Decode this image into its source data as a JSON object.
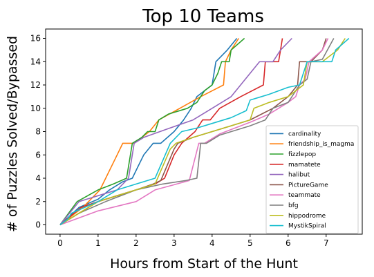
{
  "chart_data": {
    "type": "line",
    "title": "Top 10 Teams",
    "xlabel": "Hours from Start of the Hunt",
    "ylabel": "# of Puzzles Solved/Bypassed",
    "xlim": [
      -0.38,
      7.95
    ],
    "ylim": [
      -0.8,
      16.8
    ],
    "xticks": [
      0,
      1,
      2,
      3,
      4,
      5,
      6,
      7
    ],
    "yticks": [
      0,
      2,
      4,
      6,
      8,
      10,
      12,
      14,
      16
    ],
    "grid": false,
    "legend_position": "lower-right",
    "series": [
      {
        "name": "cardinality",
        "color": "#1f77b4",
        "points": [
          [
            0,
            0
          ],
          [
            0.5,
            1.5
          ],
          [
            1.0,
            2.2
          ],
          [
            1.3,
            3
          ],
          [
            1.65,
            3.7
          ],
          [
            1.9,
            4
          ],
          [
            2.05,
            5
          ],
          [
            2.2,
            6
          ],
          [
            2.45,
            7
          ],
          [
            2.65,
            7
          ],
          [
            3.0,
            8
          ],
          [
            3.25,
            9
          ],
          [
            3.45,
            10
          ],
          [
            3.6,
            11
          ],
          [
            3.8,
            11.5
          ],
          [
            4.0,
            12
          ],
          [
            4.1,
            14
          ],
          [
            4.4,
            15
          ],
          [
            4.65,
            16
          ]
        ]
      },
      {
        "name": "friendship_is_magma",
        "color": "#ff7f0e",
        "points": [
          [
            0,
            0
          ],
          [
            0.6,
            1.5
          ],
          [
            1.05,
            3
          ],
          [
            1.2,
            4
          ],
          [
            1.5,
            6
          ],
          [
            1.65,
            7
          ],
          [
            1.95,
            7
          ],
          [
            2.35,
            8
          ],
          [
            2.6,
            9
          ],
          [
            3.15,
            10
          ],
          [
            3.7,
            11
          ],
          [
            4.3,
            12
          ],
          [
            4.35,
            14
          ],
          [
            4.5,
            15
          ],
          [
            4.7,
            16
          ]
        ]
      },
      {
        "name": "fizzlepop",
        "color": "#2ca02c",
        "points": [
          [
            0,
            0
          ],
          [
            0.45,
            2
          ],
          [
            1.0,
            3
          ],
          [
            1.4,
            3.5
          ],
          [
            1.75,
            4
          ],
          [
            1.9,
            7
          ],
          [
            2.15,
            7.5
          ],
          [
            2.3,
            8
          ],
          [
            2.5,
            8
          ],
          [
            2.6,
            9
          ],
          [
            2.85,
            9.5
          ],
          [
            3.35,
            10
          ],
          [
            3.6,
            10.5
          ],
          [
            3.8,
            11.5
          ],
          [
            4.0,
            12
          ],
          [
            4.15,
            13
          ],
          [
            4.25,
            14
          ],
          [
            4.45,
            14
          ],
          [
            4.5,
            15
          ],
          [
            4.85,
            16
          ]
        ]
      },
      {
        "name": "mamatete",
        "color": "#d62728",
        "points": [
          [
            0,
            0
          ],
          [
            0.55,
            1.5
          ],
          [
            1.0,
            2
          ],
          [
            1.5,
            2.5
          ],
          [
            2.0,
            3
          ],
          [
            2.5,
            3.5
          ],
          [
            2.75,
            4
          ],
          [
            3.0,
            6
          ],
          [
            3.2,
            7
          ],
          [
            3.55,
            8
          ],
          [
            3.75,
            9
          ],
          [
            3.95,
            9
          ],
          [
            4.2,
            10
          ],
          [
            4.75,
            11
          ],
          [
            5.35,
            12
          ],
          [
            5.4,
            14
          ],
          [
            5.75,
            14
          ],
          [
            5.8,
            15
          ],
          [
            5.85,
            16
          ]
        ]
      },
      {
        "name": "halibut",
        "color": "#9467bd",
        "points": [
          [
            0,
            0
          ],
          [
            0.5,
            2
          ],
          [
            1.0,
            2.5
          ],
          [
            1.5,
            3
          ],
          [
            1.8,
            4
          ],
          [
            1.95,
            7
          ],
          [
            2.2,
            7.5
          ],
          [
            2.8,
            8.2
          ],
          [
            3.5,
            9
          ],
          [
            4.0,
            10
          ],
          [
            4.5,
            11
          ],
          [
            5.25,
            14
          ],
          [
            5.5,
            14
          ],
          [
            5.6,
            14
          ],
          [
            5.8,
            15
          ],
          [
            6.1,
            16
          ]
        ]
      },
      {
        "name": "PictureGame",
        "color": "#8c564b",
        "points": [
          [
            0,
            0
          ],
          [
            0.5,
            1
          ],
          [
            1.0,
            2
          ],
          [
            1.5,
            2.5
          ],
          [
            2.0,
            3
          ],
          [
            2.45,
            3.5
          ],
          [
            2.65,
            3.8
          ],
          [
            3.0,
            6.5
          ],
          [
            3.1,
            7
          ],
          [
            3.5,
            7.5
          ],
          [
            4.0,
            8
          ],
          [
            4.5,
            8.5
          ],
          [
            5.0,
            9
          ],
          [
            5.6,
            10
          ],
          [
            6.0,
            11
          ],
          [
            6.25,
            12
          ],
          [
            6.3,
            14
          ],
          [
            6.6,
            14
          ],
          [
            6.9,
            15
          ],
          [
            7.0,
            16
          ]
        ]
      },
      {
        "name": "teammate",
        "color": "#e377c2",
        "points": [
          [
            0,
            0
          ],
          [
            1.0,
            1.2
          ],
          [
            2.0,
            2
          ],
          [
            2.5,
            3
          ],
          [
            3.4,
            3.8
          ],
          [
            3.65,
            7
          ],
          [
            3.8,
            7
          ],
          [
            4.2,
            7.8
          ],
          [
            4.6,
            8.3
          ],
          [
            5.0,
            8.8
          ],
          [
            5.5,
            9.5
          ],
          [
            6.0,
            10.5
          ],
          [
            6.2,
            11
          ],
          [
            6.3,
            12
          ],
          [
            6.45,
            12.5
          ],
          [
            6.55,
            14
          ],
          [
            6.9,
            15
          ],
          [
            7.05,
            16
          ]
        ]
      },
      {
        "name": "bfg",
        "color": "#7f7f7f",
        "points": [
          [
            0,
            0
          ],
          [
            0.5,
            1
          ],
          [
            1.2,
            2
          ],
          [
            2.0,
            3
          ],
          [
            2.7,
            3.5
          ],
          [
            3.3,
            3.8
          ],
          [
            3.6,
            4
          ],
          [
            3.7,
            7
          ],
          [
            3.85,
            7
          ],
          [
            4.2,
            7.7
          ],
          [
            5.0,
            8.5
          ],
          [
            5.4,
            9
          ],
          [
            5.6,
            10
          ],
          [
            6.0,
            10.5
          ],
          [
            6.3,
            12
          ],
          [
            6.5,
            12.5
          ],
          [
            6.6,
            14
          ],
          [
            6.9,
            14.2
          ],
          [
            7.2,
            16
          ]
        ]
      },
      {
        "name": "hippodrome",
        "color": "#bcbd22",
        "points": [
          [
            0,
            0
          ],
          [
            0.5,
            1
          ],
          [
            1.0,
            2
          ],
          [
            1.5,
            2.5
          ],
          [
            2.0,
            3
          ],
          [
            2.5,
            3.5
          ],
          [
            2.9,
            6.5
          ],
          [
            3.05,
            7
          ],
          [
            3.5,
            7.5
          ],
          [
            4.0,
            8
          ],
          [
            4.5,
            8.5
          ],
          [
            5.0,
            9
          ],
          [
            5.1,
            10
          ],
          [
            5.5,
            10.5
          ],
          [
            6.0,
            11
          ],
          [
            6.4,
            12
          ],
          [
            6.5,
            14
          ],
          [
            6.9,
            14
          ],
          [
            7.3,
            15
          ],
          [
            7.5,
            16
          ]
        ]
      },
      {
        "name": "MystikSpiral",
        "color": "#17becf",
        "points": [
          [
            0,
            0
          ],
          [
            0.2,
            0.5
          ],
          [
            0.3,
            1
          ],
          [
            1.0,
            2
          ],
          [
            1.5,
            3
          ],
          [
            2.0,
            3.5
          ],
          [
            2.5,
            4
          ],
          [
            2.9,
            7
          ],
          [
            3.2,
            8
          ],
          [
            3.6,
            8.3
          ],
          [
            4.0,
            8.7
          ],
          [
            4.5,
            9.2
          ],
          [
            4.9,
            9.8
          ],
          [
            5.0,
            10.7
          ],
          [
            5.5,
            11.2
          ],
          [
            6.0,
            11.8
          ],
          [
            6.3,
            12
          ],
          [
            6.5,
            14
          ],
          [
            6.8,
            14
          ],
          [
            7.15,
            14
          ],
          [
            7.25,
            15
          ],
          [
            7.6,
            16
          ]
        ]
      }
    ]
  }
}
